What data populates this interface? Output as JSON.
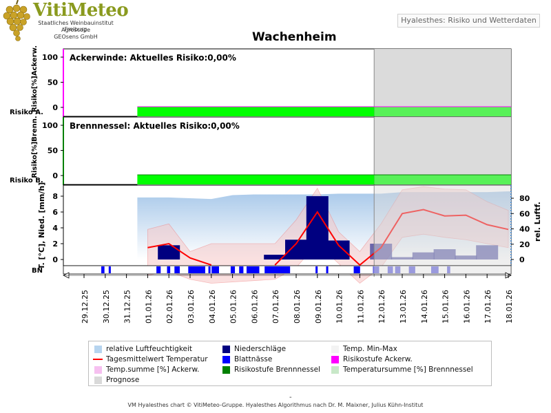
{
  "header": {
    "logo_title": "VitiMeteo",
    "logo_lines": [
      "Staatliches Weinbauinstitut Freiburg",
      "Agroscope",
      "GEOsens GmbH"
    ],
    "subtitle": "Hyalesthes: Risiko und Wetterdaten",
    "station": "Wachenheim"
  },
  "footer": "VM Hyalesthes chart © VitiMeteo-Gruppe. Hyalesthes Algorithmus nach Dr. M. Maixner, Julius Kühn-Institut",
  "footer_dash": "-",
  "colors": {
    "risk_bar": "#00ff00",
    "forecast_shade": "#d9d9d9",
    "humidity_fill": "#b6d4ef",
    "precip": "#000080",
    "leaf_wet": "#0000ff",
    "temp_line": "#ff0000",
    "ackerwinde_axis": "#ff00ff",
    "brennnessel_axis": "#008000"
  },
  "chart_data": [
    {
      "type": "bar",
      "panel": "ackerwinde",
      "title": "Ackerwinde: Aktuelles Risiko:0,00%",
      "ylabel": "Risiko[%]Ackerw.",
      "row_label": "Risiko A.",
      "ylim": [
        0,
        100
      ],
      "yticks": [
        0,
        50,
        100
      ],
      "risk_start_date": "01.01.26",
      "temp_sum_percent": 0,
      "risk_percent": 0
    },
    {
      "type": "bar",
      "panel": "brennnessel",
      "title": "Brennnessel: Aktuelles Risiko:0,00%",
      "ylabel": "Risiko[%]Brenn.",
      "row_label": "Risiko B.",
      "ylim": [
        0,
        100
      ],
      "yticks": [
        0,
        50,
        100
      ],
      "risk_start_date": "01.01.26",
      "temp_sum_percent": 0,
      "risk_percent": 0
    },
    {
      "type": "line",
      "panel": "weather",
      "ylabel_left": "T. [°C], Nied. [mm/h]",
      "ylabel_right": "rel. Luftf.",
      "ylim_left": [
        0,
        9
      ],
      "yticks_left": [
        0,
        2,
        4,
        6,
        8
      ],
      "ylim_right": [
        0,
        90
      ],
      "yticks_right": [
        0,
        20,
        40,
        60,
        80
      ],
      "bn_label": "BN",
      "x": [
        "29.12.25",
        "30.12.25",
        "31.12.25",
        "01.01.26",
        "02.01.26",
        "03.01.26",
        "04.01.26",
        "05.01.26",
        "06.01.26",
        "07.01.26",
        "08.01.26",
        "09.01.26",
        "10.01.26",
        "11.01.26",
        "12.01.26",
        "13.01.26",
        "14.01.26",
        "15.01.26",
        "16.01.26",
        "17.01.26",
        "18.01.26"
      ],
      "forecast_from": "12.01.26",
      "humidity": [
        [
          "01.01.26",
          81
        ],
        [
          "02.01.26",
          81
        ],
        [
          "03.01.26",
          80
        ],
        [
          "04.01.26",
          79
        ],
        [
          "05.01.26",
          84
        ],
        [
          "06.01.26",
          85
        ],
        [
          "07.01.26",
          85
        ],
        [
          "08.01.26",
          85
        ],
        [
          "09.01.26",
          85
        ],
        [
          "10.01.26",
          86
        ],
        [
          "11.01.26",
          86
        ],
        [
          "12.01.26",
          86
        ],
        [
          "13.01.26",
          88
        ],
        [
          "14.01.26",
          88
        ],
        [
          "15.01.26",
          88
        ],
        [
          "16.01.26",
          88
        ],
        [
          "17.01.26",
          88
        ],
        [
          "18.01.26",
          89
        ]
      ],
      "temp_mean": [
        [
          "01.01.26",
          1.5
        ],
        [
          "02.01.26",
          2.0
        ],
        [
          "03.01.26",
          0.2
        ],
        [
          "04.01.26",
          -1.5
        ],
        [
          "07.01.26",
          -1.0
        ],
        [
          "08.01.26",
          2.0
        ],
        [
          "09.01.26",
          6.0
        ],
        [
          "10.01.26",
          1.8
        ],
        [
          "11.01.26",
          -1.5
        ],
        [
          "12.01.26",
          1.5
        ],
        [
          "13.01.26",
          5.8
        ],
        [
          "14.01.26",
          6.3
        ],
        [
          "15.01.26",
          5.5
        ],
        [
          "16.01.26",
          5.6
        ],
        [
          "17.01.26",
          4.4
        ],
        [
          "18.01.26",
          3.8
        ]
      ],
      "temp_max": [
        [
          "01.01.26",
          3.8
        ],
        [
          "02.01.26",
          4.5
        ],
        [
          "03.01.26",
          1.0
        ],
        [
          "04.01.26",
          2.0
        ],
        [
          "05.01.26",
          0.5
        ],
        [
          "06.01.26",
          0.5
        ],
        [
          "07.01.26",
          2.0
        ],
        [
          "08.01.26",
          5.0
        ],
        [
          "09.01.26",
          9.0
        ],
        [
          "10.01.26",
          3.5
        ],
        [
          "11.01.26",
          1.0
        ],
        [
          "12.01.26",
          4.5
        ],
        [
          "13.01.26",
          8.8
        ],
        [
          "14.01.26",
          9.2
        ],
        [
          "15.01.26",
          8.9
        ],
        [
          "16.01.26",
          8.8
        ],
        [
          "17.01.26",
          7.3
        ],
        [
          "18.01.26",
          6.2
        ]
      ],
      "temp_min": [
        [
          "01.01.26",
          -2.0
        ],
        [
          "02.01.26",
          -1.5
        ],
        [
          "03.01.26",
          -2.5
        ],
        [
          "04.01.26",
          -3.0
        ],
        [
          "07.01.26",
          -2.5
        ],
        [
          "08.01.26",
          -1.0
        ],
        [
          "09.01.26",
          2.0
        ],
        [
          "10.01.26",
          -0.5
        ],
        [
          "11.01.26",
          -3.0
        ],
        [
          "12.01.26",
          -1.0
        ],
        [
          "13.01.26",
          2.8
        ],
        [
          "14.01.26",
          3.2
        ],
        [
          "15.01.26",
          2.8
        ],
        [
          "16.01.26",
          2.5
        ],
        [
          "17.01.26",
          2.0
        ],
        [
          "18.01.26",
          1.5
        ]
      ],
      "precipitation": [
        [
          "02.01.26",
          1.8
        ],
        [
          "07.01.26",
          0.6
        ],
        [
          "08.01.26",
          2.5
        ],
        [
          "09.01.26",
          8.0
        ],
        [
          "10.01.26",
          2.4
        ],
        [
          "12.01.26",
          2.0
        ],
        [
          "13.01.26",
          0.3
        ],
        [
          "14.01.26",
          0.9
        ],
        [
          "15.01.26",
          1.3
        ],
        [
          "16.01.26",
          0.5
        ],
        [
          "17.01.26",
          1.8
        ]
      ],
      "leaf_wetness": [
        [
          1.3,
          1.45
        ],
        [
          1.65,
          1.75
        ],
        [
          3.9,
          4.1
        ],
        [
          4.4,
          4.55
        ],
        [
          4.75,
          5.0
        ],
        [
          5.4,
          6.2
        ],
        [
          6.35,
          6.45
        ],
        [
          6.5,
          6.85
        ],
        [
          7.4,
          7.6
        ],
        [
          7.8,
          8.0
        ],
        [
          8.15,
          8.75
        ],
        [
          9.0,
          10.2
        ],
        [
          11.4,
          11.5
        ],
        [
          11.9,
          12.0
        ],
        [
          13.2,
          13.5
        ],
        [
          14.1,
          14.4
        ],
        [
          14.8,
          15.05
        ],
        [
          15.15,
          15.4
        ],
        [
          15.8,
          16.1
        ],
        [
          16.85,
          17.2
        ],
        [
          17.6,
          17.75
        ]
      ]
    }
  ],
  "legend": [
    {
      "label": "relative Luftfeuchtigkeit",
      "kind": "box",
      "color": "#b6d4ef"
    },
    {
      "label": "Niederschläge",
      "kind": "box",
      "color": "#000080"
    },
    {
      "label": "Temp. Min-Max",
      "kind": "box",
      "color": "#f3f3f3"
    },
    {
      "label": "Tagesmittelwert Temperatur",
      "kind": "line",
      "color": "#ff0000"
    },
    {
      "label": "Blattnässe",
      "kind": "box",
      "color": "#0000ff"
    },
    {
      "label": "Risikostufe Ackerw.",
      "kind": "box",
      "color": "#ff00ff"
    },
    {
      "label": "Temp.summe [%] Ackerw.",
      "kind": "box",
      "color": "#f6c0f0"
    },
    {
      "label": "Risikostufe Brennnessel",
      "kind": "box",
      "color": "#008000"
    },
    {
      "label": "Temperatursumme [%] Brennnessel",
      "kind": "box",
      "color": "#c8e8c8"
    },
    {
      "label": "Prognose",
      "kind": "box",
      "color": "#d9d9d9"
    }
  ]
}
